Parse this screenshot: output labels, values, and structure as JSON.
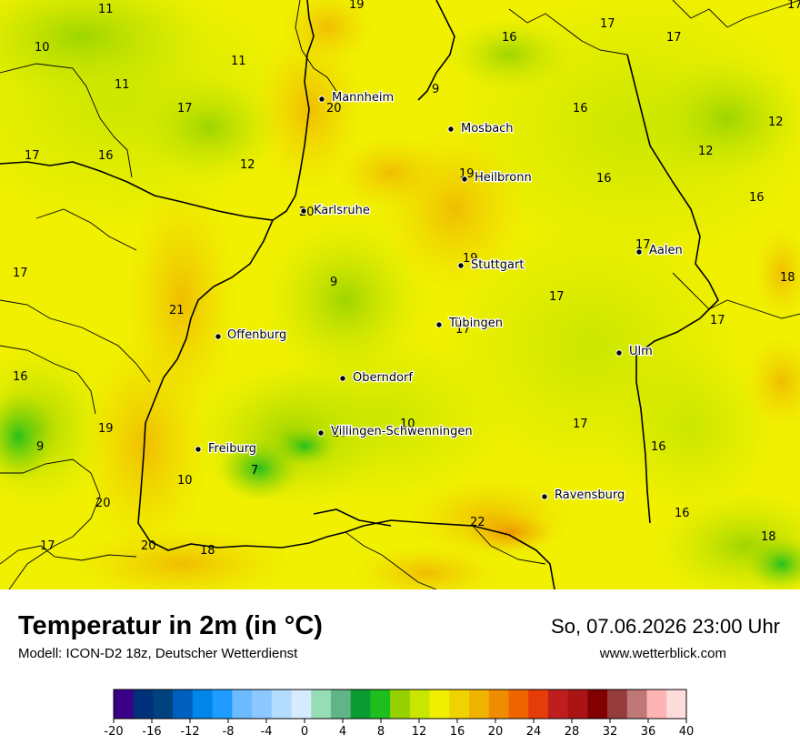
{
  "title": "Temperatur in 2m (in °C)",
  "subtitle": "Modell: ICON-D2 18z, Deutscher Wetterdienst",
  "datetime": "So, 07.06.2026 23:00 Uhr",
  "website": "www.wetterblick.com",
  "cities": [
    {
      "name": "Mannheim"
    },
    {
      "name": "Mosbach"
    },
    {
      "name": "Heilbronn"
    },
    {
      "name": "Karlsruhe"
    },
    {
      "name": "Aalen"
    },
    {
      "name": "Stuttgart"
    },
    {
      "name": "Tübingen"
    },
    {
      "name": "Offenburg"
    },
    {
      "name": "Ulm"
    },
    {
      "name": "Oberndorf"
    },
    {
      "name": "Villingen-Schwenningen"
    },
    {
      "name": "Freiburg"
    },
    {
      "name": "Ravensburg"
    }
  ],
  "temperature_labels": [
    "11",
    "19",
    "17",
    "10",
    "11",
    "17",
    "11",
    "17",
    "16",
    "9",
    "20",
    "16",
    "12",
    "17",
    "16",
    "12",
    "12",
    "16",
    "19",
    "20",
    "16",
    "17",
    "19",
    "17",
    "18",
    "9",
    "21",
    "17",
    "17",
    "17",
    "16",
    "17",
    "19",
    "10",
    "16",
    "9",
    "16",
    "17",
    "10",
    "7",
    "20",
    "22",
    "16",
    "18",
    "17",
    "20",
    "18"
  ],
  "legend": {
    "colors": [
      "#3c0088",
      "#00307a",
      "#00427f",
      "#0060c0",
      "#0086e8",
      "#1e9cff",
      "#6cbaff",
      "#8cc8ff",
      "#b4dcff",
      "#d6ebff",
      "#96dcb4",
      "#60b488",
      "#0a9c32",
      "#1ebe1e",
      "#96d200",
      "#c8e600",
      "#f0f000",
      "#f0d200",
      "#f0b400",
      "#f08c00",
      "#f06400",
      "#e63c0a",
      "#be1e1e",
      "#aa1414",
      "#820000",
      "#963c3c",
      "#be7878",
      "#ffb4b4",
      "#ffdcdc"
    ],
    "ticks": [
      "-20",
      "-16",
      "-12",
      "-8",
      "-4",
      "0",
      "4",
      "8",
      "12",
      "16",
      "20",
      "24",
      "28",
      "32",
      "36",
      "40"
    ]
  }
}
